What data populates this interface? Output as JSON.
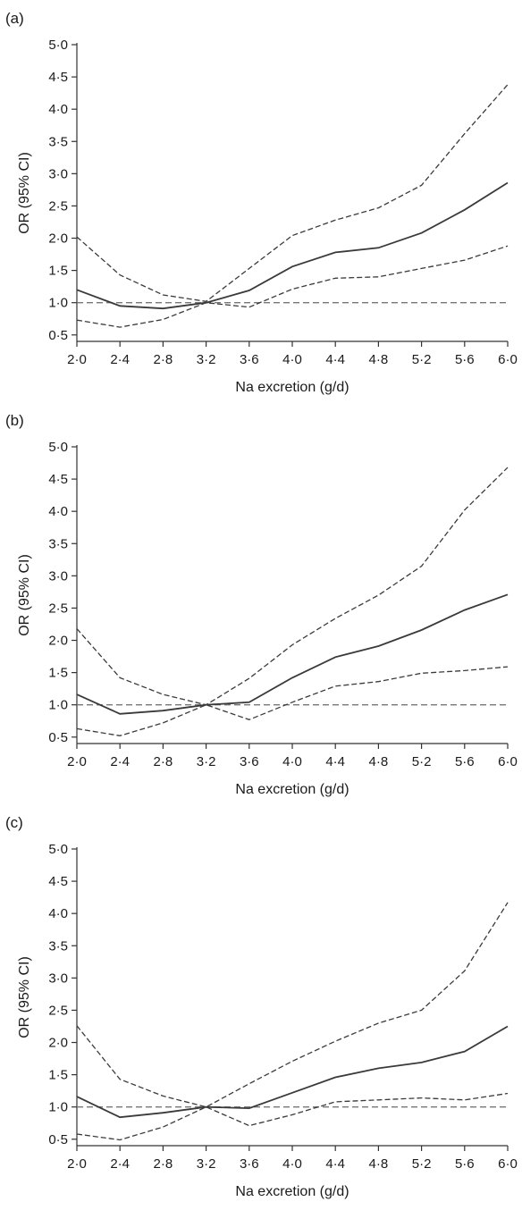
{
  "chart_data": [
    {
      "type": "line",
      "panel_label": "(a)",
      "xlabel": "Na excretion (g/d)",
      "ylabel": "OR (95% CI)",
      "x": [
        2.0,
        2.4,
        2.8,
        3.2,
        3.6,
        4.0,
        4.4,
        4.8,
        5.2,
        5.6,
        6.0
      ],
      "x_tick_labels": [
        "2·0",
        "2·4",
        "2·8",
        "3·2",
        "3·6",
        "4·0",
        "4·4",
        "4·8",
        "5·2",
        "5·6",
        "6·0"
      ],
      "y_tick_labels": [
        "0·5",
        "1·0",
        "1·5",
        "2·0",
        "2·5",
        "3·0",
        "3·5",
        "4·0",
        "4·5",
        "5·0"
      ],
      "y_ticks": [
        0.5,
        1.0,
        1.5,
        2.0,
        2.5,
        3.0,
        3.5,
        4.0,
        4.5,
        5.0
      ],
      "xlim": [
        2.0,
        6.0
      ],
      "ylim": [
        0.4,
        5.0
      ],
      "reference_line": 1.0,
      "series": [
        {
          "role": "or",
          "values": [
            1.2,
            0.95,
            0.91,
            1.0,
            1.19,
            1.56,
            1.78,
            1.85,
            2.08,
            2.44,
            2.86
          ]
        },
        {
          "role": "ci_upper",
          "values": [
            2.02,
            1.43,
            1.12,
            1.02,
            1.53,
            2.04,
            2.28,
            2.47,
            2.82,
            3.62,
            4.38
          ]
        },
        {
          "role": "ci_lower",
          "values": [
            0.73,
            0.62,
            0.74,
            1.0,
            0.93,
            1.21,
            1.38,
            1.4,
            1.53,
            1.66,
            1.88
          ]
        }
      ]
    },
    {
      "type": "line",
      "panel_label": "(b)",
      "xlabel": "Na excretion (g/d)",
      "ylabel": "OR (95% CI)",
      "x": [
        2.0,
        2.4,
        2.8,
        3.2,
        3.6,
        4.0,
        4.4,
        4.8,
        5.2,
        5.6,
        6.0
      ],
      "x_tick_labels": [
        "2·0",
        "2·4",
        "2·8",
        "3·2",
        "3·6",
        "4·0",
        "4·4",
        "4·8",
        "5·2",
        "5·6",
        "6·0"
      ],
      "y_tick_labels": [
        "0·5",
        "1·0",
        "1·5",
        "2·0",
        "2·5",
        "3·0",
        "3·5",
        "4·0",
        "4·5",
        "5·0"
      ],
      "y_ticks": [
        0.5,
        1.0,
        1.5,
        2.0,
        2.5,
        3.0,
        3.5,
        4.0,
        4.5,
        5.0
      ],
      "xlim": [
        2.0,
        6.0
      ],
      "ylim": [
        0.4,
        5.0
      ],
      "reference_line": 1.0,
      "series": [
        {
          "role": "or",
          "values": [
            1.16,
            0.86,
            0.91,
            1.0,
            1.04,
            1.42,
            1.74,
            1.91,
            2.16,
            2.47,
            2.71
          ]
        },
        {
          "role": "ci_upper",
          "values": [
            2.18,
            1.42,
            1.16,
            1.0,
            1.41,
            1.93,
            2.34,
            2.7,
            3.15,
            4.02,
            4.68
          ]
        },
        {
          "role": "ci_lower",
          "values": [
            0.63,
            0.52,
            0.72,
            1.0,
            0.77,
            1.04,
            1.29,
            1.36,
            1.49,
            1.53,
            1.59
          ]
        }
      ]
    },
    {
      "type": "line",
      "panel_label": "(c)",
      "xlabel": "Na excretion (g/d)",
      "ylabel": "OR (95% CI)",
      "x": [
        2.0,
        2.4,
        2.8,
        3.2,
        3.6,
        4.0,
        4.4,
        4.8,
        5.2,
        5.6,
        6.0
      ],
      "x_tick_labels": [
        "2·0",
        "2·4",
        "2·8",
        "3·2",
        "3·6",
        "4·0",
        "4·4",
        "4·8",
        "5·2",
        "5·6",
        "6·0"
      ],
      "y_tick_labels": [
        "0·5",
        "1·0",
        "1·5",
        "2·0",
        "2·5",
        "3·0",
        "3·5",
        "4·0",
        "4·5",
        "5·0"
      ],
      "y_ticks": [
        0.5,
        1.0,
        1.5,
        2.0,
        2.5,
        3.0,
        3.5,
        4.0,
        4.5,
        5.0
      ],
      "xlim": [
        2.0,
        6.0
      ],
      "ylim": [
        0.4,
        5.0
      ],
      "reference_line": 1.0,
      "series": [
        {
          "role": "or",
          "values": [
            1.16,
            0.84,
            0.91,
            1.0,
            0.98,
            1.22,
            1.46,
            1.6,
            1.69,
            1.86,
            2.25
          ]
        },
        {
          "role": "ci_upper",
          "values": [
            2.26,
            1.43,
            1.17,
            1.0,
            1.36,
            1.71,
            2.02,
            2.3,
            2.5,
            3.11,
            4.17
          ]
        },
        {
          "role": "ci_lower",
          "values": [
            0.58,
            0.49,
            0.69,
            1.0,
            0.71,
            0.88,
            1.08,
            1.11,
            1.14,
            1.11,
            1.21
          ]
        }
      ]
    }
  ]
}
